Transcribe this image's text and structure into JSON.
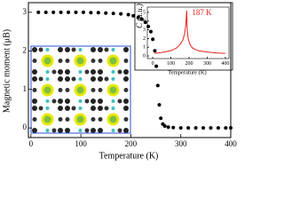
{
  "chart_data": [
    {
      "type": "scatter",
      "x_label": "Temperature (K)",
      "y_label": "Magnetic moment (μB)",
      "color": "#000000",
      "x": [
        15,
        30,
        45,
        60,
        75,
        90,
        105,
        120,
        135,
        150,
        165,
        180,
        195,
        205,
        215,
        222,
        229,
        235,
        240,
        244,
        248,
        251,
        254,
        257,
        260,
        264,
        268,
        275,
        285,
        300,
        315,
        330,
        345,
        360,
        375,
        390,
        400
      ],
      "values": [
        3.0,
        3.0,
        3.0,
        3.0,
        3.0,
        3.0,
        3.0,
        2.99,
        2.99,
        2.98,
        2.97,
        2.96,
        2.94,
        2.91,
        2.87,
        2.82,
        2.74,
        2.63,
        2.5,
        2.3,
        2.0,
        1.6,
        1.1,
        0.6,
        0.25,
        0.1,
        0.05,
        0.02,
        0.01,
        0,
        0,
        0,
        0,
        0,
        0,
        0,
        0
      ],
      "xlim": [
        -5,
        400
      ],
      "ylim": [
        -0.25,
        3.25
      ],
      "xticks": [
        0,
        100,
        200,
        300,
        400
      ],
      "yticks": [
        0,
        1,
        2,
        3
      ]
    },
    {
      "type": "line",
      "x_label": "Temperature (K)",
      "y_label": "C (a.u.)",
      "annotation": "187 K",
      "color": "#e8201c",
      "x": [
        10,
        50,
        100,
        130,
        150,
        165,
        175,
        182,
        187,
        190,
        195,
        205,
        220,
        250,
        300,
        350,
        400
      ],
      "values": [
        0.3,
        0.4,
        0.6,
        0.9,
        1.3,
        1.8,
        2.5,
        3.5,
        5.2,
        3.0,
        2.0,
        1.3,
        0.9,
        0.6,
        0.45,
        0.35,
        0.3
      ],
      "xlim": [
        -30,
        420
      ],
      "ylim": [
        -0.3,
        5.6
      ],
      "xticks": [
        0,
        100,
        200,
        300,
        400
      ],
      "yticks": [
        0,
        1,
        2,
        3,
        4,
        5
      ]
    }
  ]
}
